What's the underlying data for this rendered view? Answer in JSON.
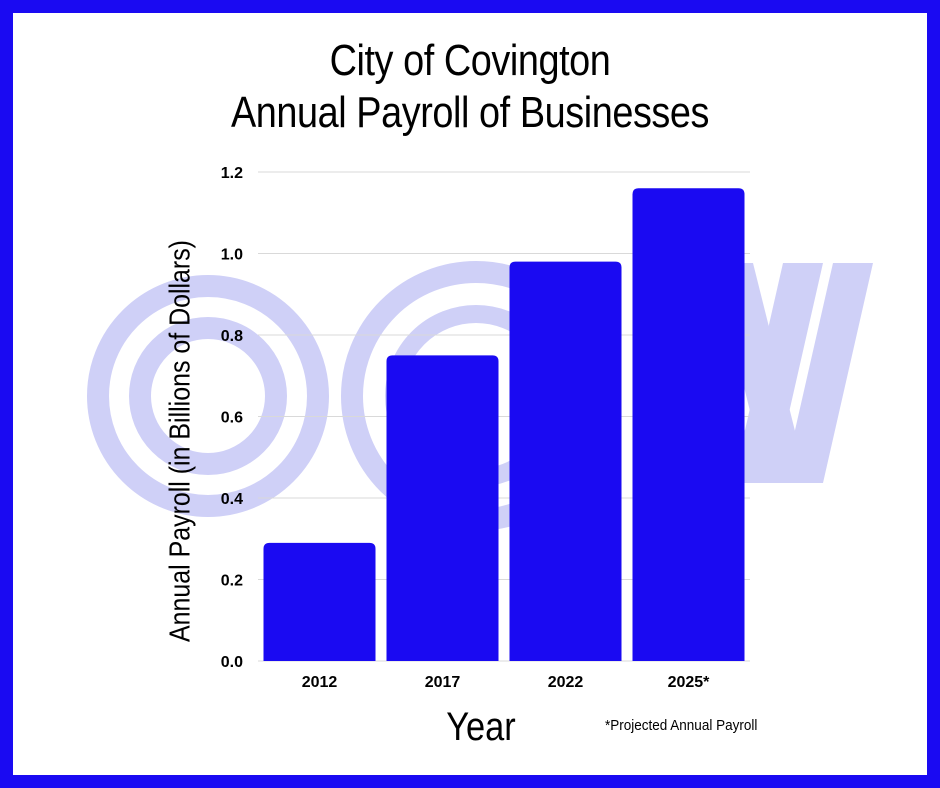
{
  "chart_data": {
    "type": "bar",
    "title_lines": [
      "City of Covington",
      "Annual Payroll of Businesses"
    ],
    "categories": [
      "2012",
      "2017",
      "2022",
      "2025*"
    ],
    "values": [
      0.29,
      0.75,
      0.98,
      1.16
    ],
    "xlabel": "Year",
    "ylabel": "Annual Payroll (in Billions of Dollars)",
    "ylim": [
      0,
      1.2
    ],
    "yticks": [
      "0.0",
      "0.2",
      "0.4",
      "0.6",
      "0.8",
      "1.0",
      "1.2"
    ],
    "grid": true,
    "footnote": "*Projected Annual Payroll",
    "bar_color": "#1a0af2",
    "watermark_color": "#cfd0f7"
  }
}
